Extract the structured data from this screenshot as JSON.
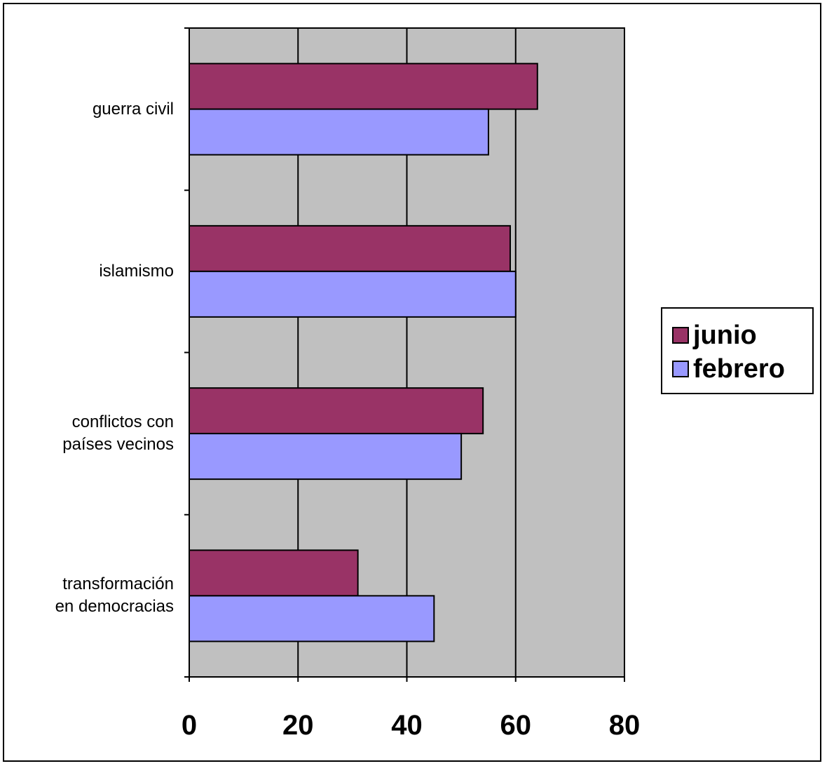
{
  "chart_data": {
    "type": "bar",
    "orientation": "horizontal",
    "title": "",
    "xlabel": "",
    "ylabel": "",
    "categories": [
      "guerra civil",
      "islamismo",
      "conflictos con\npaíses vecinos",
      "transformación\nen democracias"
    ],
    "series": [
      {
        "name": "junio",
        "values": [
          64,
          59,
          54,
          31
        ],
        "color": "#993366"
      },
      {
        "name": "febrero",
        "values": [
          55,
          60,
          50,
          45
        ],
        "color": "#9999ff"
      }
    ],
    "xlim": [
      0,
      80
    ],
    "xticks": [
      "0",
      "20",
      "40",
      "60",
      "80"
    ],
    "grid": true,
    "plot_background": "#c0c0c0",
    "legend_position": "right"
  }
}
